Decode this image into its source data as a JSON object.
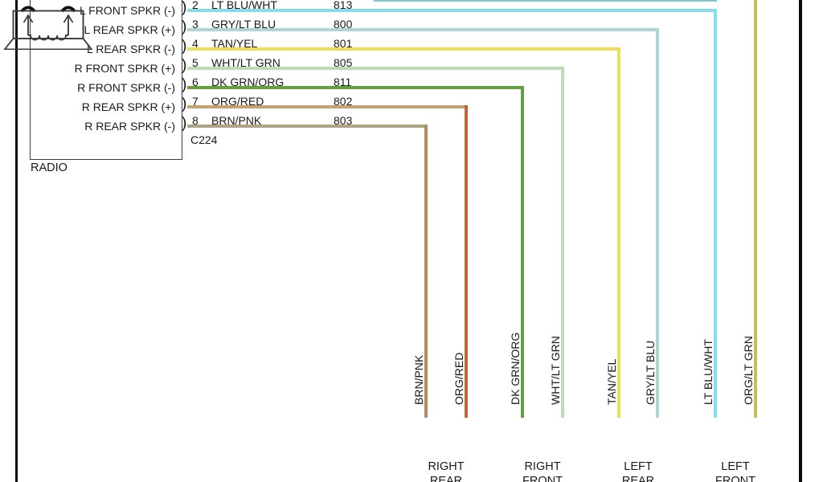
{
  "diagram": {
    "radio": {
      "label": "RADIO",
      "connector": "C224",
      "pins": [
        {
          "pin": "2",
          "wire": "LT BLU/WHT",
          "circuit": "813",
          "function": "L FRONT SPKR (-)"
        },
        {
          "pin": "3",
          "wire": "GRY/LT BLU",
          "circuit": "800",
          "function": "L REAR SPKR (+)"
        },
        {
          "pin": "4",
          "wire": "TAN/YEL",
          "circuit": "801",
          "function": "L REAR SPKR (-)"
        },
        {
          "pin": "5",
          "wire": "WHT/LT GRN",
          "circuit": "805",
          "function": "R FRONT SPKR (+)"
        },
        {
          "pin": "6",
          "wire": "DK GRN/ORG",
          "circuit": "811",
          "function": "R FRONT SPKR (-)"
        },
        {
          "pin": "7",
          "wire": "ORG/RED",
          "circuit": "802",
          "function": "R REAR SPKR (+)"
        },
        {
          "pin": "8",
          "wire": "BRN/PNK",
          "circuit": "803",
          "function": "R REAR SPKR (-)"
        }
      ]
    },
    "vertical_wire_labels": [
      "BRN/PNK",
      "ORG/RED",
      "DK GRN/ORG",
      "WHT/LT GRN",
      "TAN/YEL",
      "GRY/LT BLU",
      "LT BLU/WHT",
      "ORG/LT GRN"
    ],
    "speakers": [
      {
        "line1": "RIGHT",
        "line2": "REAR",
        "wires": [
          "BRN/PNK",
          "ORG/RED"
        ]
      },
      {
        "line1": "RIGHT",
        "line2": "FRONT",
        "wires": [
          "DK GRN/ORG",
          "WHT/LT GRN"
        ]
      },
      {
        "line1": "LEFT",
        "line2": "REAR",
        "wires": [
          "TAN/YEL",
          "GRY/LT BLU"
        ]
      },
      {
        "line1": "LEFT",
        "line2": "FRONT",
        "wires": [
          "LT BLU/WHT",
          "ORG/LT GRN"
        ]
      }
    ],
    "wire_colors": {
      "LT BLU/WHT": "#82dfeb",
      "GRY/LT BLU": "#aed7d4",
      "TAN/YEL": "#ecdf58",
      "WHT/LT GRN": "#bedcb4",
      "DK GRN/ORG": "#63a13e",
      "ORG/RED": "#c2663a",
      "ORG/RED_HORIZ": "#c8a26a",
      "BRN/PNK": "#b18d60",
      "BRN/PNK_HORIZ": "#b3a384",
      "ORG/LT GRN": "#c0c155",
      "top_cut_wire_sliver": "#86c4c6",
      "page_border": "#0d0d0d"
    }
  }
}
